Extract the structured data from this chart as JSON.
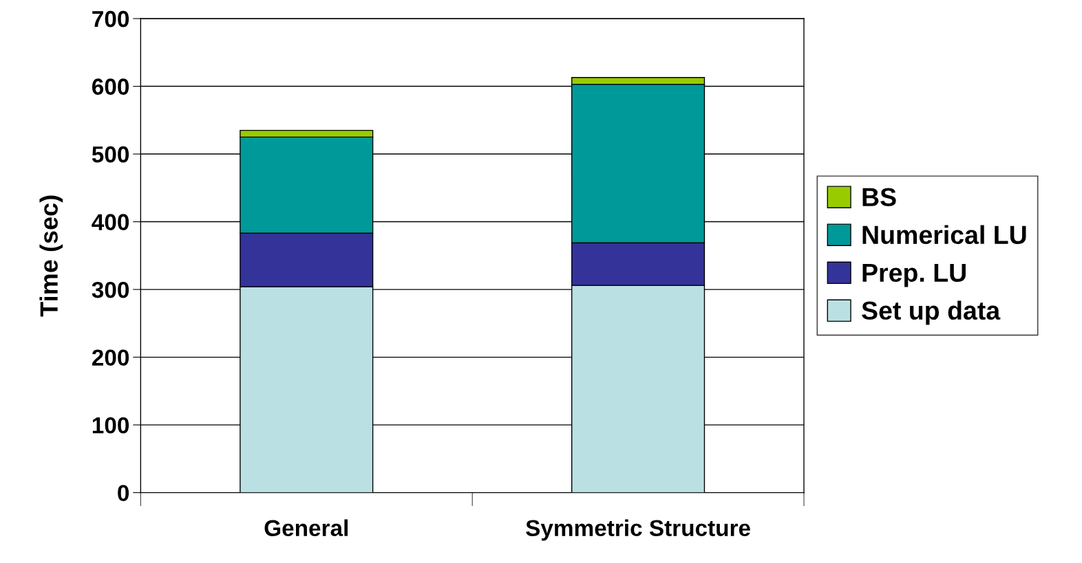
{
  "chart_data": {
    "type": "bar",
    "stacked": true,
    "ylabel": "Time (sec)",
    "categories": [
      "General",
      "Symmetric Structure"
    ],
    "series": [
      {
        "name": "Set up data",
        "color": "#bbe0e3",
        "values": [
          304,
          306
        ]
      },
      {
        "name": "Prep. LU",
        "color": "#333399",
        "values": [
          79,
          63
        ]
      },
      {
        "name": "Numerical LU",
        "color": "#009999",
        "values": [
          142,
          234
        ]
      },
      {
        "name": "BS",
        "color": "#99cc00",
        "values": [
          10,
          10
        ]
      }
    ],
    "ylim": [
      0,
      700
    ],
    "yticks": [
      0,
      100,
      200,
      300,
      400,
      500,
      600,
      700
    ],
    "grid": "y",
    "legend": "right"
  }
}
